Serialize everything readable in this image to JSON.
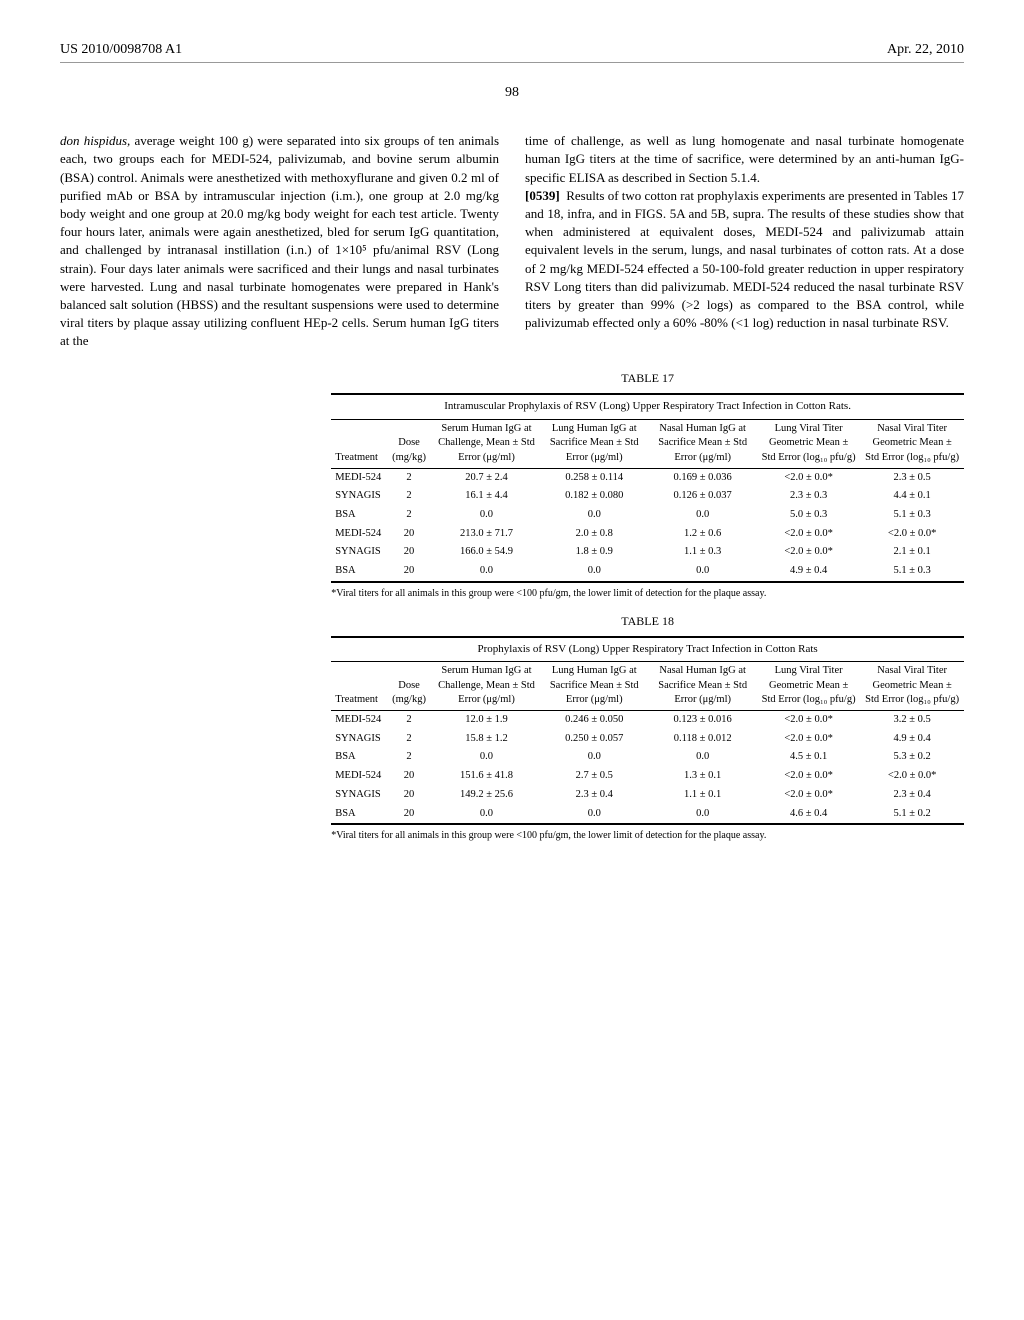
{
  "header": {
    "pub_number": "US 2010/0098708 A1",
    "date": "Apr. 22, 2010"
  },
  "page_number": "98",
  "left_col_text": "don hispidus, average weight 100 g) were separated into six groups of ten animals each, two groups each for MEDI-524, palivizumab, and bovine serum albumin (BSA) control. Animals were anesthetized with methoxyflurane and given 0.2 ml of purified mAb or BSA by intramuscular injection (i.m.), one group at 2.0 mg/kg body weight and one group at 20.0 mg/kg body weight for each test article. Twenty four hours later, animals were again anesthetized, bled for serum IgG quantitation, and challenged by intranasal instillation (i.n.) of 1×10⁵ pfu/animal RSV (Long strain). Four days later animals were sacrificed and their lungs and nasal turbinates were harvested. Lung and nasal turbinate homogenates were prepared in Hank's balanced salt solution (HBSS) and the resultant suspensions were used to determine viral titers by plaque assay utilizing confluent HEp-2 cells. Serum human IgG titers at the",
  "right_col_text_1": "time of challenge, as well as lung homogenate and nasal turbinate homogenate human IgG titers at the time of sacrifice, were determined by an anti-human IgG-specific ELISA as described in Section 5.1.4.",
  "right_col_para_num": "[0539]",
  "right_col_text_2": "Results of two cotton rat prophylaxis experiments are presented in Tables 17 and 18, infra, and in FIGS. 5A and 5B, supra. The results of these studies show that when administered at equivalent doses, MEDI-524 and palivizumab attain equivalent levels in the serum, lungs, and nasal turbinates of cotton rats. At a dose of 2 mg/kg MEDI-524 effected a 50-100-fold greater reduction in upper respiratory RSV Long titers than did palivizumab. MEDI-524 reduced the nasal turbinate RSV titers by greater than 99% (>2 logs) as compared to the BSA control, while palivizumab effected only a 60% -80% (<1 log) reduction in nasal turbinate RSV.",
  "table17": {
    "label": "TABLE 17",
    "title": "Intramuscular Prophylaxis of RSV (Long) Upper Respiratory Tract Infection in Cotton Rats.",
    "columns": [
      "Treatment",
      "Dose (mg/kg)",
      "Serum Human IgG at Challenge, Mean ± Std Error (μg/ml)",
      "Lung Human IgG at Sacrifice Mean ± Std Error (μg/ml)",
      "Nasal Human IgG at Sacrifice Mean ± Std Error (μg/ml)",
      "Lung Viral Titer Geometric Mean ± Std Error (log₁₀ pfu/g)",
      "Nasal Viral Titer Geometric Mean ± Std Error (log₁₀ pfu/g)"
    ],
    "rows": [
      [
        "MEDI-524",
        "2",
        "20.7 ± 2.4",
        "0.258 ± 0.114",
        "0.169 ± 0.036",
        "<2.0 ± 0.0*",
        "2.3 ± 0.5"
      ],
      [
        "SYNAGIS",
        "2",
        "16.1 ± 4.4",
        "0.182 ± 0.080",
        "0.126 ± 0.037",
        "2.3 ± 0.3",
        "4.4 ± 0.1"
      ],
      [
        "BSA",
        "2",
        "0.0",
        "0.0",
        "0.0",
        "5.0 ± 0.3",
        "5.1 ± 0.3"
      ],
      [
        "MEDI-524",
        "20",
        "213.0 ± 71.7",
        "2.0 ± 0.8",
        "1.2 ± 0.6",
        "<2.0 ± 0.0*",
        "<2.0 ± 0.0*"
      ],
      [
        "SYNAGIS",
        "20",
        "166.0 ± 54.9",
        "1.8 ± 0.9",
        "1.1 ± 0.3",
        "<2.0 ± 0.0*",
        "2.1 ± 0.1"
      ],
      [
        "BSA",
        "20",
        "0.0",
        "0.0",
        "0.0",
        "4.9 ± 0.4",
        "5.1 ± 0.3"
      ]
    ],
    "footnote": "*Viral titers for all animals in this group were <100 pfu/gm, the lower limit of detection for the plaque assay."
  },
  "table18": {
    "label": "TABLE 18",
    "title": "Prophylaxis of RSV (Long) Upper Respiratory Tract Infection in Cotton Rats",
    "columns": [
      "Treatment",
      "Dose (mg/kg)",
      "Serum Human IgG at Challenge, Mean ± Std Error (μg/ml)",
      "Lung Human IgG at Sacrifice Mean ± Std Error (μg/ml)",
      "Nasal Human IgG at Sacrifice Mean ± Std Error (μg/ml)",
      "Lung Viral Titer Geometric Mean ± Std Error (log₁₀ pfu/g)",
      "Nasal Viral Titer Geometric Mean ± Std Error (log₁₀ pfu/g)"
    ],
    "rows": [
      [
        "MEDI-524",
        "2",
        "12.0 ± 1.9",
        "0.246 ± 0.050",
        "0.123 ± 0.016",
        "<2.0 ± 0.0*",
        "3.2 ± 0.5"
      ],
      [
        "SYNAGIS",
        "2",
        "15.8 ± 1.2",
        "0.250 ± 0.057",
        "0.118 ± 0.012",
        "<2.0 ± 0.0*",
        "4.9 ± 0.4"
      ],
      [
        "BSA",
        "2",
        "0.0",
        "0.0",
        "0.0",
        "4.5 ± 0.1",
        "5.3 ± 0.2"
      ],
      [
        "MEDI-524",
        "20",
        "151.6 ± 41.8",
        "2.7 ± 0.5",
        "1.3 ± 0.1",
        "<2.0 ± 0.0*",
        "<2.0 ± 0.0*"
      ],
      [
        "SYNAGIS",
        "20",
        "149.2 ± 25.6",
        "2.3 ± 0.4",
        "1.1 ± 0.1",
        "<2.0 ± 0.0*",
        "2.3 ± 0.4"
      ],
      [
        "BSA",
        "20",
        "0.0",
        "0.0",
        "0.0",
        "4.6 ± 0.4",
        "5.1 ± 0.2"
      ]
    ],
    "footnote": "*Viral titers for all animals in this group were <100 pfu/gm, the lower limit of detection for the plaque assay."
  }
}
